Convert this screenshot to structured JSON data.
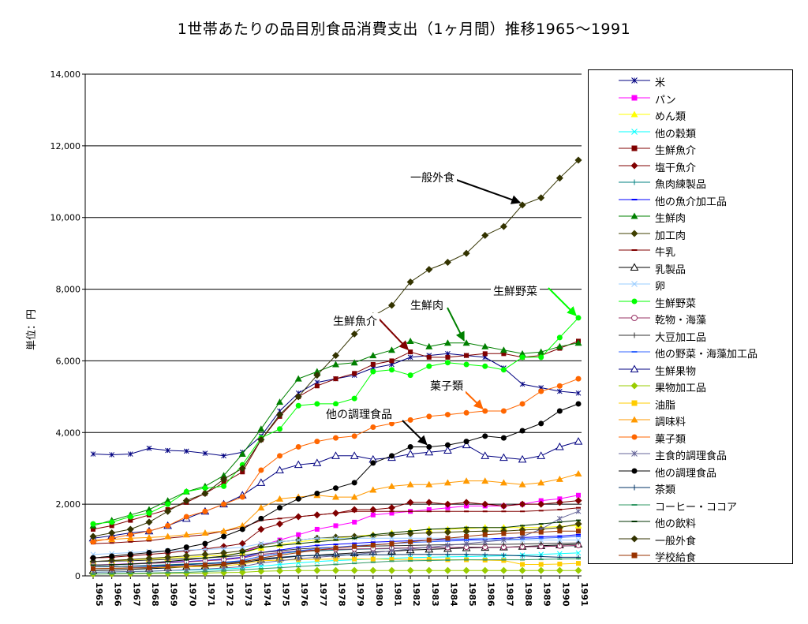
{
  "title": "1世帯あたりの品目別食品消費支出（1ヶ月間）推移1965～1991",
  "chart_data": {
    "type": "line",
    "title": "1世帯あたりの品目別食品消費支出（1ヶ月間）推移1965～1991",
    "ylabel": "単位：円",
    "xlabel": "",
    "ylim": [
      0,
      14000
    ],
    "yticks": [
      0,
      2000,
      4000,
      6000,
      8000,
      10000,
      12000,
      14000
    ],
    "ytick_labels": [
      "0",
      "2,000",
      "4,000",
      "6,000",
      "8,000",
      "10,000",
      "12,000",
      "14,000"
    ],
    "grid": "horizontal",
    "legend_position": "right",
    "x": [
      "1965",
      "1966",
      "1967",
      "1968",
      "1969",
      "1970",
      "1971",
      "1972",
      "1973",
      "1974",
      "1975",
      "1976",
      "1977",
      "1978",
      "1979",
      "1980",
      "1981",
      "1982",
      "1983",
      "1984",
      "1985",
      "1986",
      "1987",
      "1988",
      "1989",
      "1990",
      "1991"
    ],
    "series": [
      {
        "name": "米",
        "color": "#000080",
        "marker": "asterisk",
        "values": [
          3400,
          3380,
          3400,
          3560,
          3500,
          3480,
          3420,
          3350,
          3450,
          3900,
          4600,
          5100,
          5400,
          5500,
          5600,
          5800,
          5900,
          6100,
          6150,
          6200,
          6150,
          6100,
          5800,
          5350,
          5250,
          5150,
          5100
        ]
      },
      {
        "name": "パン",
        "color": "#ff00ff",
        "marker": "square",
        "values": [
          300,
          320,
          340,
          360,
          400,
          440,
          500,
          550,
          650,
          850,
          1000,
          1150,
          1300,
          1400,
          1500,
          1700,
          1750,
          1800,
          1850,
          1900,
          1950,
          1950,
          1950,
          2000,
          2100,
          2150,
          2250
        ]
      },
      {
        "name": "めん類",
        "color": "#ffff00",
        "marker": "triangle",
        "values": [
          400,
          420,
          450,
          470,
          500,
          520,
          550,
          580,
          640,
          780,
          870,
          950,
          1000,
          1050,
          1100,
          1150,
          1200,
          1250,
          1300,
          1300,
          1320,
          1350,
          1350,
          1350,
          1350,
          1380,
          1400
        ]
      },
      {
        "name": "他の穀類",
        "color": "#00ffff",
        "marker": "x",
        "values": [
          100,
          110,
          120,
          130,
          150,
          160,
          170,
          190,
          220,
          270,
          320,
          360,
          400,
          430,
          450,
          470,
          490,
          510,
          520,
          530,
          540,
          550,
          560,
          580,
          600,
          620,
          640
        ]
      },
      {
        "name": "生鮮魚介",
        "color": "#800000",
        "marker": "square",
        "values": [
          1300,
          1400,
          1550,
          1700,
          1850,
          2050,
          2300,
          2600,
          2900,
          3800,
          4450,
          5000,
          5300,
          5500,
          5650,
          5900,
          6000,
          6250,
          6100,
          6100,
          6150,
          6200,
          6200,
          6100,
          6150,
          6350,
          6550
        ]
      },
      {
        "name": "塩干魚介",
        "color": "#800000",
        "marker": "diamond",
        "values": [
          500,
          520,
          560,
          600,
          640,
          700,
          750,
          820,
          900,
          1300,
          1450,
          1650,
          1700,
          1750,
          1850,
          1850,
          1900,
          2050,
          2050,
          2000,
          2050,
          2000,
          1950,
          2000,
          2000,
          2050,
          2100
        ]
      },
      {
        "name": "魚肉練製品",
        "color": "#008080",
        "marker": "plus",
        "values": [
          250,
          260,
          270,
          290,
          310,
          330,
          350,
          380,
          420,
          550,
          620,
          680,
          700,
          720,
          740,
          750,
          760,
          780,
          790,
          790,
          800,
          800,
          800,
          810,
          820,
          830,
          840
        ]
      },
      {
        "name": "他の魚介加工品",
        "color": "#0000ff",
        "marker": "dash",
        "values": [
          300,
          310,
          330,
          350,
          380,
          400,
          430,
          470,
          520,
          650,
          720,
          800,
          850,
          880,
          910,
          940,
          960,
          980,
          1000,
          1010,
          1020,
          1040,
          1050,
          1070,
          1090,
          1110,
          1150
        ]
      },
      {
        "name": "生鮮肉",
        "color": "#008000",
        "marker": "triangle",
        "values": [
          1400,
          1550,
          1700,
          1850,
          2100,
          2350,
          2500,
          2800,
          3400,
          4100,
          4850,
          5500,
          5700,
          5900,
          5950,
          6150,
          6300,
          6550,
          6400,
          6500,
          6500,
          6400,
          6300,
          6200,
          6250,
          6400,
          6500
        ]
      },
      {
        "name": "加工肉",
        "color": "#404000",
        "marker": "diamond",
        "values": [
          400,
          430,
          460,
          490,
          520,
          560,
          600,
          640,
          700,
          850,
          950,
          1000,
          1050,
          1080,
          1100,
          1120,
          1150,
          1180,
          1200,
          1220,
          1240,
          1250,
          1250,
          1280,
          1300,
          1350,
          1450
        ]
      },
      {
        "name": "牛乳",
        "color": "#800000",
        "marker": "dash",
        "values": [
          900,
          920,
          950,
          980,
          1050,
          1100,
          1150,
          1250,
          1350,
          1550,
          1600,
          1650,
          1700,
          1750,
          1800,
          1800,
          1800,
          1800,
          1800,
          1800,
          1800,
          1800,
          1800,
          1800,
          1820,
          1850,
          1900
        ]
      },
      {
        "name": "乳製品",
        "color": "#000000",
        "marker": "triangle-open",
        "values": [
          150,
          160,
          180,
          200,
          220,
          250,
          280,
          320,
          370,
          450,
          500,
          550,
          580,
          610,
          640,
          670,
          690,
          720,
          740,
          760,
          780,
          790,
          800,
          820,
          840,
          860,
          880
        ]
      },
      {
        "name": "卵",
        "color": "#99ccff",
        "marker": "x",
        "values": [
          600,
          620,
          650,
          680,
          700,
          720,
          740,
          760,
          800,
          900,
          950,
          1000,
          1050,
          1050,
          1050,
          1050,
          1050,
          1050,
          1050,
          1050,
          1050,
          1050,
          1000,
          1000,
          1000,
          1000,
          1000
        ]
      },
      {
        "name": "生鮮野菜",
        "color": "#00ff00",
        "marker": "circle",
        "values": [
          1450,
          1500,
          1650,
          1750,
          2000,
          2350,
          2450,
          2500,
          3100,
          3850,
          4100,
          4750,
          4800,
          4800,
          4950,
          5700,
          5750,
          5600,
          5850,
          5950,
          5900,
          5850,
          5750,
          6100,
          6100,
          6650,
          7200
        ]
      },
      {
        "name": "乾物・海藻",
        "color": "#993366",
        "marker": "circle-open",
        "values": [
          300,
          310,
          330,
          350,
          370,
          390,
          420,
          450,
          500,
          600,
          650,
          700,
          720,
          740,
          750,
          760,
          770,
          780,
          790,
          790,
          800,
          800,
          800,
          810,
          820,
          830,
          850
        ]
      },
      {
        "name": "大豆加工品",
        "color": "#333333",
        "marker": "plus",
        "values": [
          400,
          410,
          420,
          440,
          460,
          480,
          500,
          530,
          570,
          650,
          700,
          750,
          780,
          800,
          820,
          830,
          840,
          850,
          860,
          870,
          880,
          880,
          880,
          890,
          900,
          910,
          920
        ]
      },
      {
        "name": "他の野菜・海藻加工品",
        "color": "#3366ff",
        "marker": "dash",
        "values": [
          200,
          210,
          230,
          250,
          280,
          310,
          340,
          380,
          430,
          550,
          620,
          700,
          760,
          800,
          840,
          870,
          900,
          930,
          950,
          970,
          990,
          1000,
          1010,
          1030,
          1050,
          1070,
          1100
        ]
      },
      {
        "name": "生鮮果物",
        "color": "#000080",
        "marker": "triangle-open",
        "values": [
          1050,
          1120,
          1200,
          1250,
          1400,
          1600,
          1800,
          2000,
          2250,
          2600,
          2950,
          3100,
          3150,
          3350,
          3350,
          3250,
          3300,
          3400,
          3450,
          3500,
          3650,
          3350,
          3300,
          3250,
          3350,
          3600,
          3750
        ]
      },
      {
        "name": "果物加工品",
        "color": "#99cc00",
        "marker": "diamond",
        "values": [
          50,
          55,
          60,
          65,
          70,
          75,
          80,
          90,
          100,
          130,
          140,
          150,
          150,
          150,
          150,
          150,
          150,
          150,
          150,
          150,
          150,
          150,
          150,
          150,
          150,
          150,
          150
        ]
      },
      {
        "name": "油脂",
        "color": "#ffcc00",
        "marker": "square",
        "values": [
          200,
          210,
          220,
          230,
          240,
          250,
          260,
          280,
          330,
          420,
          440,
          450,
          460,
          470,
          470,
          470,
          460,
          460,
          460,
          450,
          450,
          440,
          430,
          320,
          320,
          330,
          350
        ]
      },
      {
        "name": "調味料",
        "color": "#ff9900",
        "marker": "triangle",
        "values": [
          1000,
          1020,
          1050,
          1070,
          1100,
          1150,
          1200,
          1250,
          1400,
          1900,
          2150,
          2200,
          2250,
          2200,
          2200,
          2400,
          2500,
          2550,
          2550,
          2600,
          2650,
          2650,
          2600,
          2550,
          2600,
          2700,
          2850
        ]
      },
      {
        "name": "菓子類",
        "color": "#ff6600",
        "marker": "circle",
        "values": [
          950,
          1050,
          1150,
          1250,
          1400,
          1650,
          1800,
          2000,
          2200,
          2950,
          3350,
          3600,
          3750,
          3850,
          3900,
          4150,
          4250,
          4350,
          4450,
          4500,
          4550,
          4600,
          4600,
          4800,
          5150,
          5300,
          5500
        ]
      },
      {
        "name": "主食的調理食品",
        "color": "#666699",
        "marker": "asterisk",
        "values": [
          100,
          110,
          120,
          130,
          150,
          170,
          190,
          220,
          260,
          360,
          420,
          480,
          520,
          560,
          600,
          650,
          700,
          750,
          800,
          850,
          900,
          950,
          1000,
          1100,
          1300,
          1600,
          1800
        ]
      },
      {
        "name": "他の調理食品",
        "color": "#000000",
        "marker": "circle",
        "values": [
          500,
          550,
          600,
          650,
          700,
          800,
          900,
          1100,
          1300,
          1600,
          1900,
          2150,
          2300,
          2450,
          2600,
          3150,
          3350,
          3600,
          3600,
          3650,
          3750,
          3900,
          3850,
          4050,
          4250,
          4600,
          4800
        ]
      },
      {
        "name": "茶類",
        "color": "#003366",
        "marker": "plus",
        "values": [
          250,
          260,
          270,
          280,
          300,
          320,
          340,
          360,
          400,
          480,
          520,
          560,
          570,
          580,
          590,
          590,
          590,
          600,
          600,
          600,
          600,
          590,
          580,
          560,
          540,
          520,
          520
        ]
      },
      {
        "name": "コーヒー・ココア",
        "color": "#339966",
        "marker": "dash",
        "values": [
          50,
          60,
          70,
          80,
          90,
          100,
          120,
          140,
          170,
          200,
          230,
          260,
          290,
          320,
          350,
          380,
          410,
          420,
          430,
          440,
          450,
          450,
          450,
          450,
          460,
          470,
          480
        ]
      },
      {
        "name": "他の飲料",
        "color": "#003300",
        "marker": "dash",
        "values": [
          300,
          310,
          330,
          360,
          400,
          450,
          500,
          550,
          650,
          800,
          850,
          900,
          950,
          1000,
          1050,
          1150,
          1200,
          1250,
          1300,
          1320,
          1350,
          1350,
          1350,
          1400,
          1450,
          1500,
          1550
        ]
      },
      {
        "name": "一般外食",
        "color": "#333300",
        "marker": "diamond",
        "values": [
          1100,
          1200,
          1300,
          1500,
          1800,
          2100,
          2300,
          2700,
          3000,
          3800,
          4500,
          5000,
          5600,
          6150,
          6750,
          7250,
          7550,
          8200,
          8550,
          8750,
          9000,
          9500,
          9750,
          10350,
          10550,
          11100,
          11600
        ]
      },
      {
        "name": "学校給食",
        "color": "#993300",
        "marker": "square",
        "values": [
          200,
          210,
          220,
          230,
          260,
          280,
          300,
          330,
          380,
          500,
          580,
          650,
          720,
          780,
          820,
          860,
          900,
          950,
          1000,
          1050,
          1100,
          1150,
          1180,
          1200,
          1220,
          1250,
          1250
        ]
      }
    ],
    "annotations": [
      {
        "text": "一般外食",
        "series": "一般外食",
        "x": "1988"
      },
      {
        "text": "生鮮野菜",
        "series": "生鮮野菜",
        "x": "1991"
      },
      {
        "text": "生鮮肉",
        "series": "生鮮肉",
        "x": "1985"
      },
      {
        "text": "生鮮魚介",
        "series": "生鮮魚介",
        "x": "1982"
      },
      {
        "text": "菓子類",
        "series": "菓子類",
        "x": "1986"
      },
      {
        "text": "他の調理食品",
        "series": "他の調理食品",
        "x": "1983"
      }
    ]
  }
}
